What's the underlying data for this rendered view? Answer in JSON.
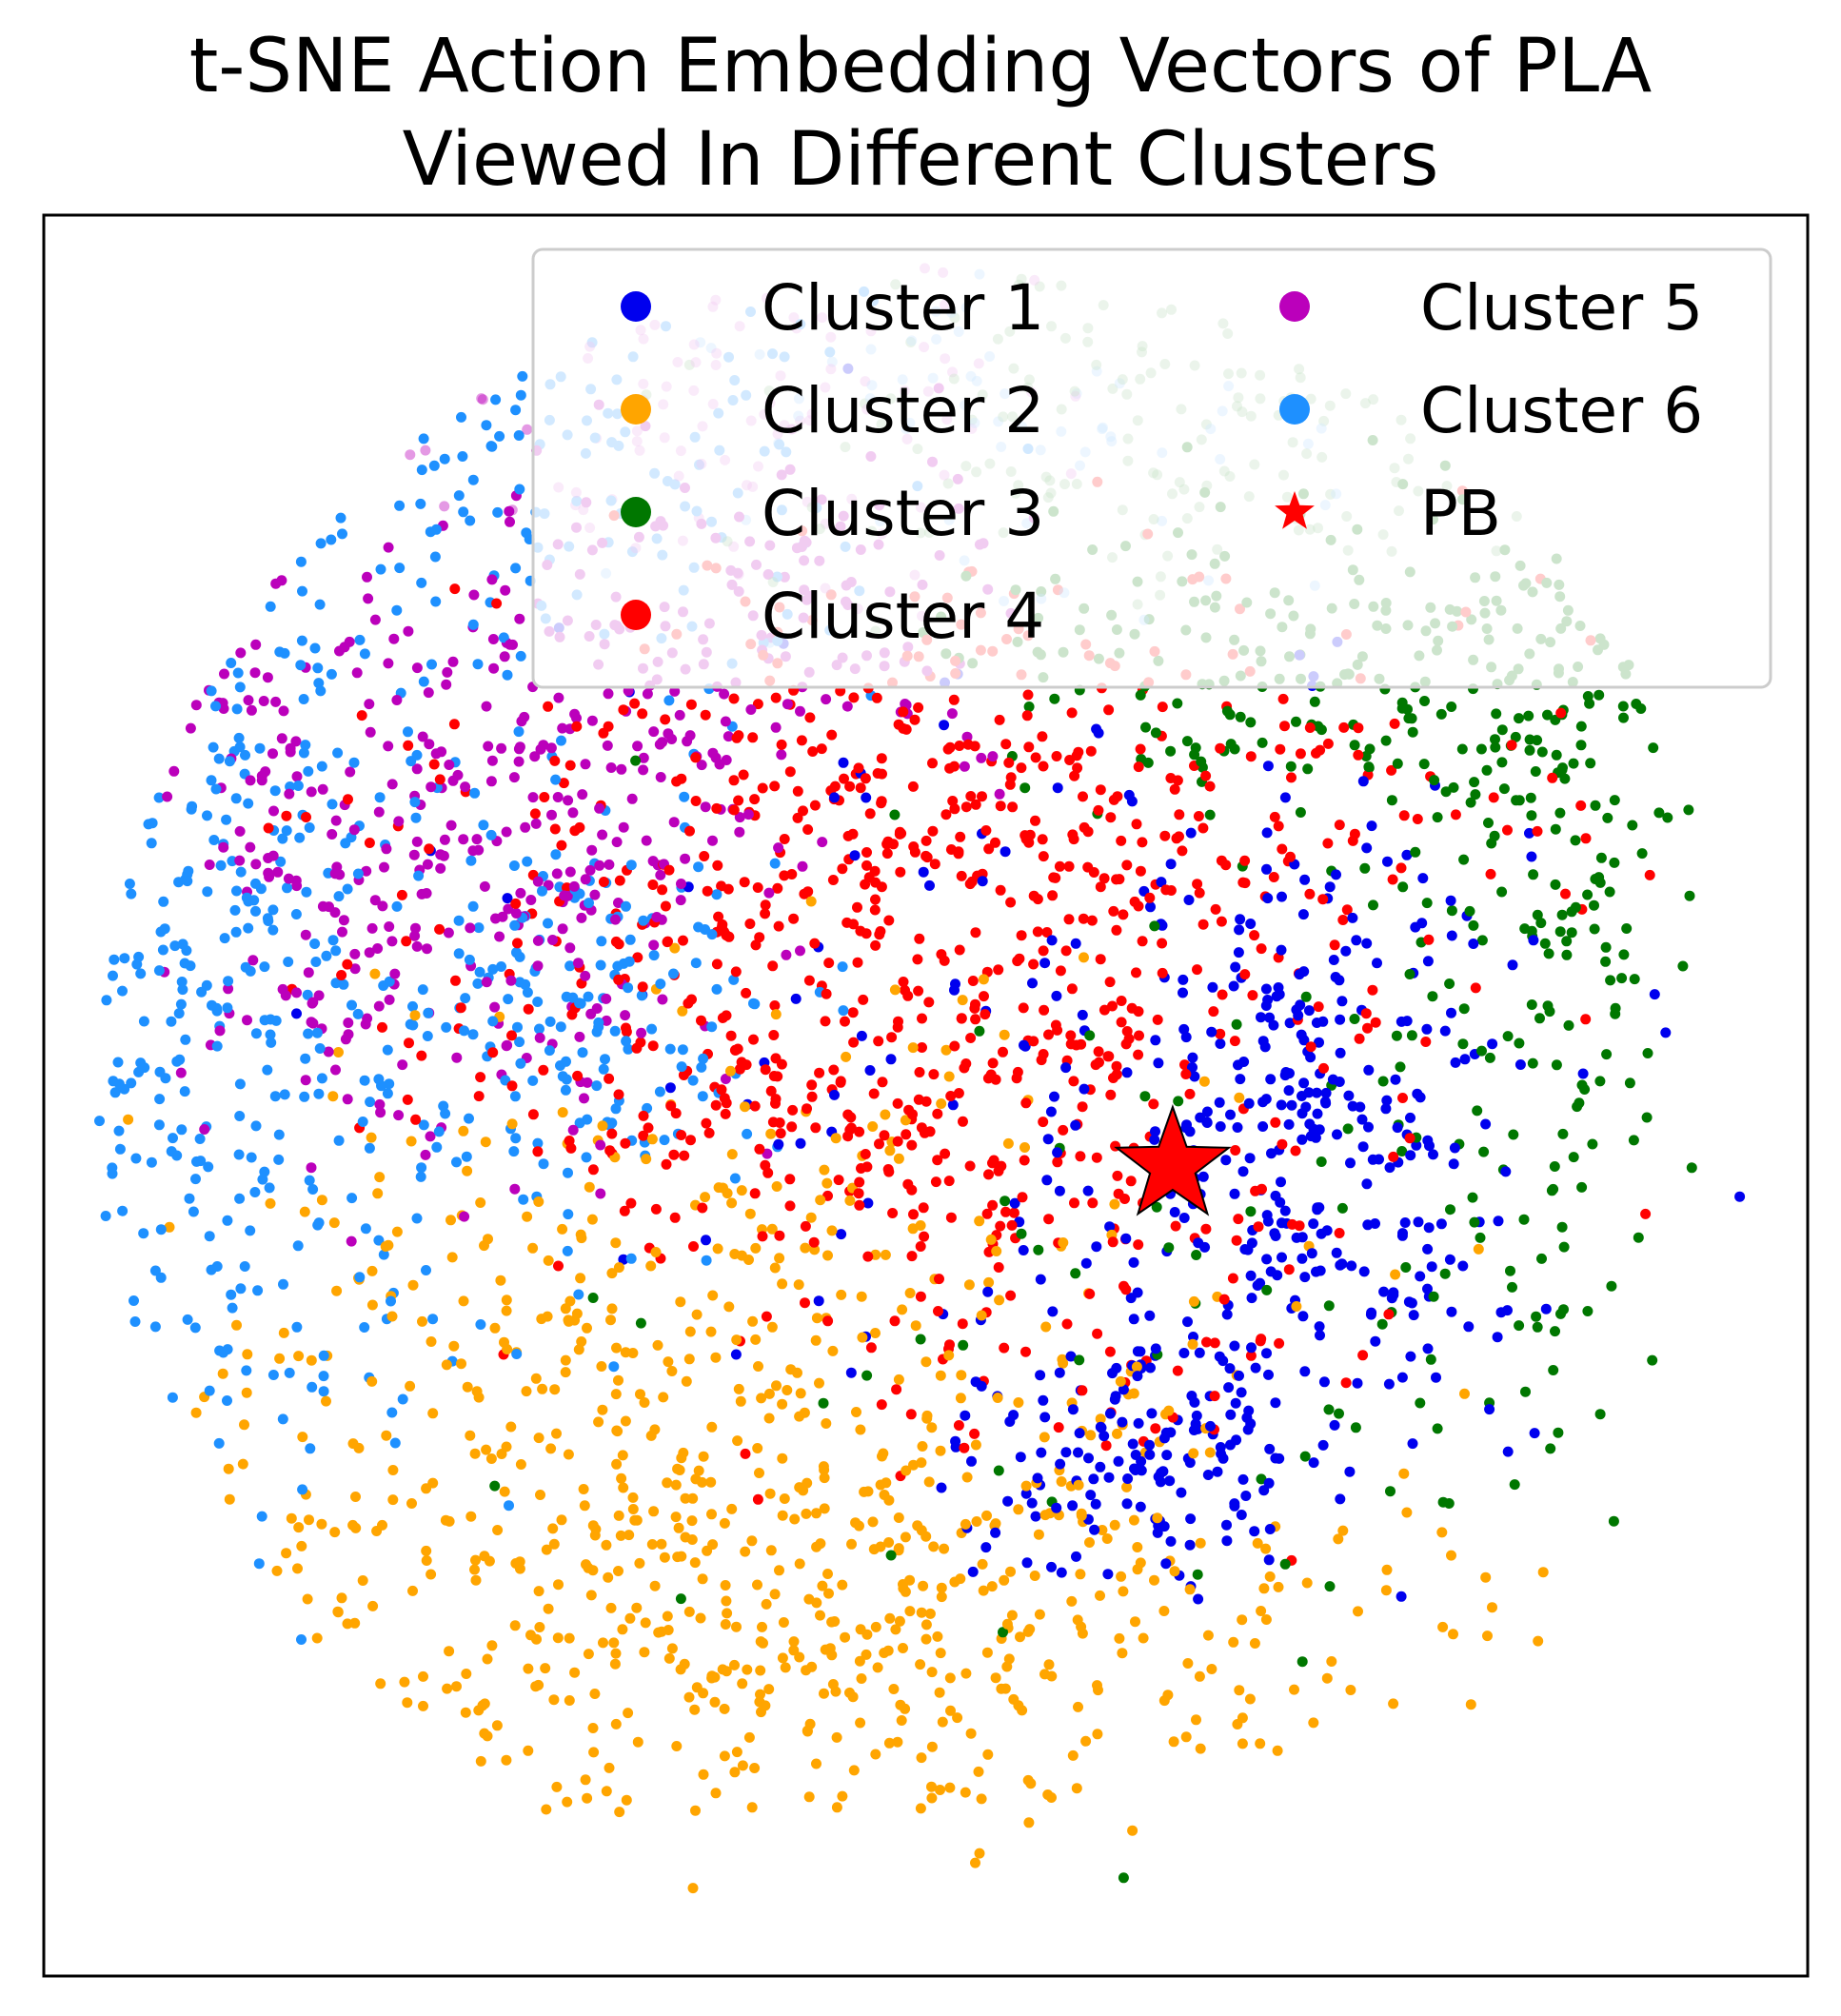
{
  "chart_data": {
    "type": "scatter",
    "title": [
      "t-SNE Action Embedding Vectors of PLA",
      "Viewed In Different Clusters"
    ],
    "xlabel": "",
    "ylabel": "",
    "xlim": [
      -50,
      50
    ],
    "ylim": [
      -50,
      50
    ],
    "axis_ticks": "none",
    "grid": false,
    "legend": {
      "placement": "top-right",
      "columns": 2
    },
    "series": [
      {
        "name": "Cluster 1",
        "color": "#0000ee",
        "marker": "circle",
        "regions": [
          {
            "center": [
              22,
              -2
            ],
            "spread": [
              6,
              10
            ],
            "count": 320
          },
          {
            "center": [
              12,
              -20
            ],
            "spread": [
              6,
              4
            ],
            "count": 150
          },
          {
            "center": [
              5,
              5
            ],
            "spread": [
              14,
              12
            ],
            "count": 90
          }
        ]
      },
      {
        "name": "Cluster 2",
        "color": "#ffa500",
        "marker": "circle",
        "regions": [
          {
            "center": [
              -12,
              -20
            ],
            "spread": [
              15,
              11
            ],
            "count": 640
          },
          {
            "center": [
              0,
              -32
            ],
            "spread": [
              18,
              5
            ],
            "count": 230
          }
        ]
      },
      {
        "name": "Cluster 3",
        "color": "#007700",
        "marker": "circle",
        "regions": [
          {
            "center": [
              35,
              12
            ],
            "spread": [
              5,
              14
            ],
            "count": 240
          },
          {
            "center": [
              22,
              24
            ],
            "spread": [
              12,
              5
            ],
            "count": 200
          },
          {
            "center": [
              14,
              38
            ],
            "spread": [
              12,
              5
            ],
            "count": 180,
            "faded": true
          },
          {
            "center": [
              18,
              -12
            ],
            "spread": [
              14,
              10
            ],
            "count": 60
          }
        ]
      },
      {
        "name": "Cluster 4",
        "color": "#ff0000",
        "marker": "circle",
        "regions": [
          {
            "center": [
              2,
              15
            ],
            "spread": [
              15,
              7
            ],
            "count": 520
          },
          {
            "center": [
              -4,
              0
            ],
            "spread": [
              12,
              5
            ],
            "count": 240
          },
          {
            "center": [
              8,
              -10
            ],
            "spread": [
              9,
              7
            ],
            "count": 110
          }
        ]
      },
      {
        "name": "Cluster 5",
        "color": "#bb00bb",
        "marker": "circle",
        "regions": [
          {
            "center": [
              -26,
              14
            ],
            "spread": [
              8,
              8
            ],
            "count": 340
          },
          {
            "center": [
              -8,
              27
            ],
            "spread": [
              8,
              5
            ],
            "count": 130
          },
          {
            "center": [
              -12,
              42
            ],
            "spread": [
              9,
              6
            ],
            "count": 140,
            "faded": true
          },
          {
            "center": [
              -40,
              24
            ],
            "spread": [
              3,
              3
            ],
            "count": 40
          }
        ]
      },
      {
        "name": "Cluster 6",
        "color": "#1e90ff",
        "marker": "circle",
        "regions": [
          {
            "center": [
              -40,
              8
            ],
            "spread": [
              7,
              15
            ],
            "count": 440
          },
          {
            "center": [
              -20,
              5
            ],
            "spread": [
              6,
              6
            ],
            "count": 180
          },
          {
            "center": [
              -22,
              36
            ],
            "spread": [
              9,
              7
            ],
            "count": 180
          },
          {
            "center": [
              5,
              40
            ],
            "spread": [
              10,
              6
            ],
            "count": 80,
            "faded": true
          }
        ]
      },
      {
        "name": "PB",
        "color": "#ff0000",
        "marker": "star",
        "x": [
          14
        ],
        "y": [
          -4
        ]
      }
    ]
  }
}
